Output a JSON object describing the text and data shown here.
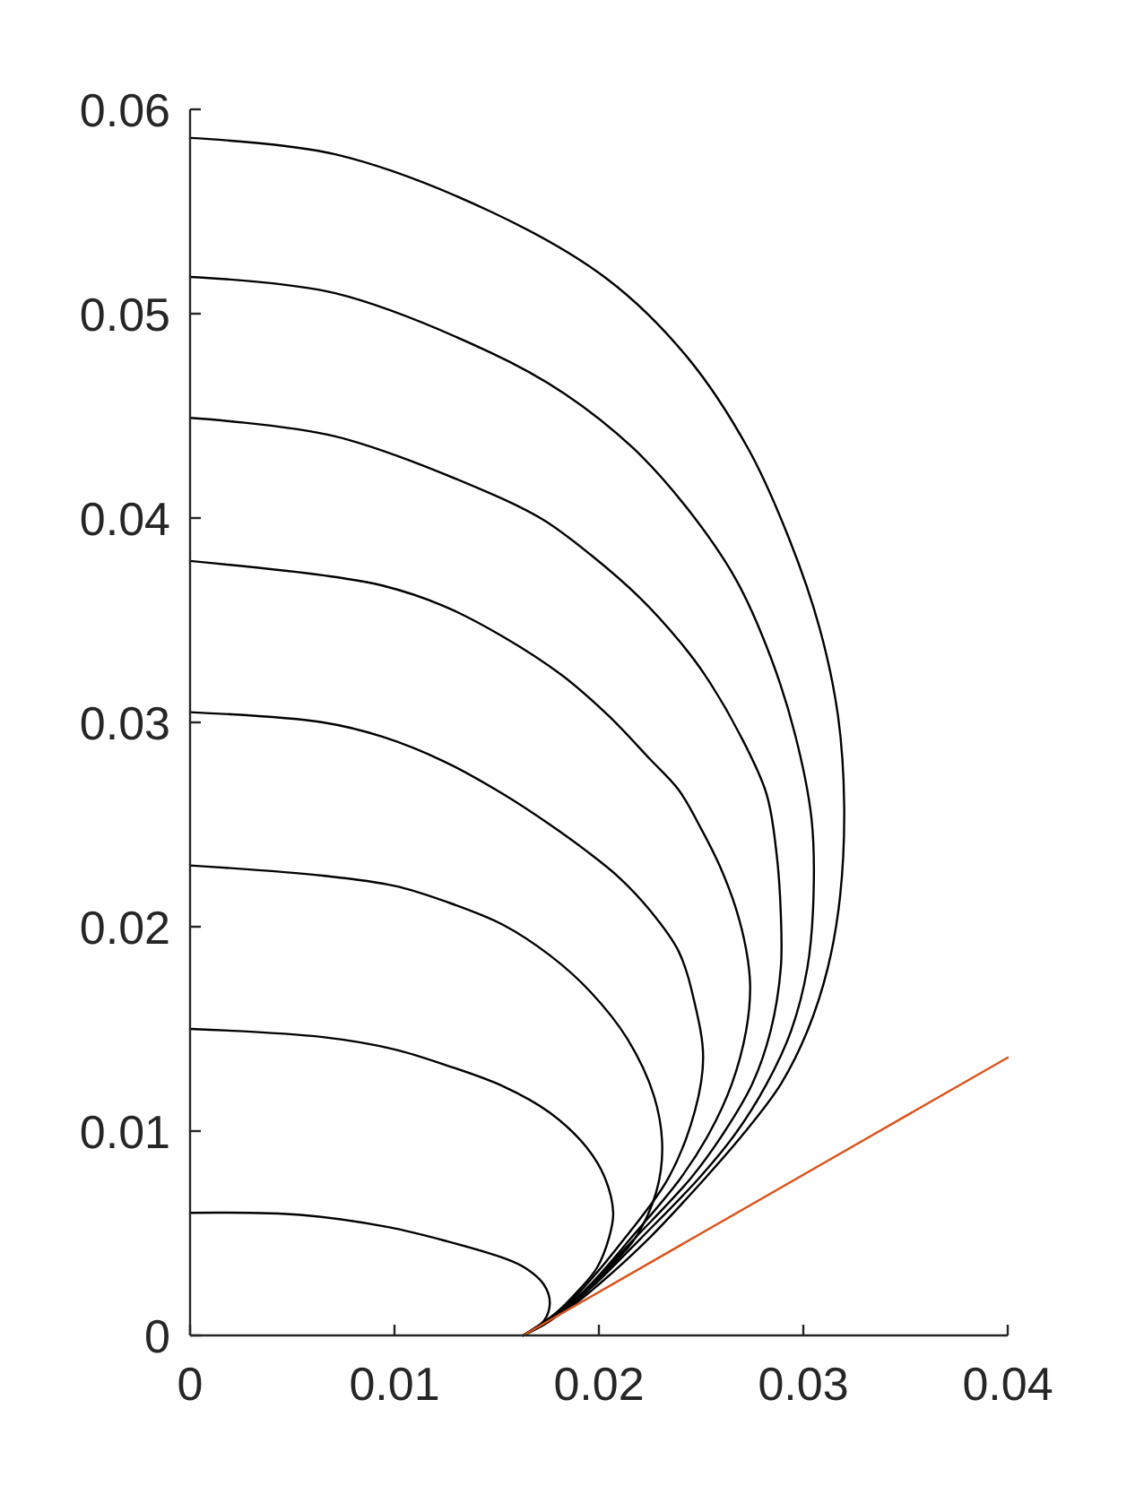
{
  "chart_data": {
    "type": "line",
    "xlim": [
      0,
      0.04
    ],
    "ylim": [
      0,
      0.06
    ],
    "xticks": [
      0,
      0.01,
      0.02,
      0.03,
      0.04
    ],
    "yticks": [
      0,
      0.01,
      0.02,
      0.03,
      0.04,
      0.05,
      0.06
    ],
    "series": [
      {
        "color": "#000000",
        "x": [
          0,
          0.0071,
          0.0147,
          0.0204,
          0.0243,
          0.0273,
          0.0293,
          0.0308,
          0.0317,
          0.032,
          0.0318,
          0.0312,
          0.0302,
          0.0289,
          0.0271,
          0.0252,
          0.0225,
          0.02,
          0.0185,
          0.0163
        ],
        "values": [
          0.0586,
          0.0578,
          0.055,
          0.0517,
          0.0479,
          0.0434,
          0.039,
          0.0346,
          0.0303,
          0.0259,
          0.0215,
          0.018,
          0.0149,
          0.0123,
          0.0099,
          0.0077,
          0.0048,
          0.0025,
          0.0013,
          0
        ]
      },
      {
        "color": "#000000",
        "x": [
          0,
          0.0071,
          0.0147,
          0.0183,
          0.0217,
          0.0243,
          0.0267,
          0.0284,
          0.0296,
          0.0304,
          0.0305,
          0.0302,
          0.0294,
          0.0282,
          0.0267,
          0.0249,
          0.0221,
          0.0198,
          0.0184,
          0.0163
        ],
        "values": [
          0.0518,
          0.051,
          0.0481,
          0.0461,
          0.0434,
          0.0405,
          0.037,
          0.0332,
          0.0294,
          0.0253,
          0.0215,
          0.018,
          0.0149,
          0.0123,
          0.0099,
          0.0077,
          0.0048,
          0.0025,
          0.0013,
          0
        ]
      },
      {
        "color": "#000000",
        "x": [
          0,
          0.0071,
          0.0147,
          0.0173,
          0.0196,
          0.022,
          0.024,
          0.0252,
          0.0269,
          0.0282,
          0.0287,
          0.0289,
          0.0289,
          0.0284,
          0.0275,
          0.0261,
          0.0245,
          0.0218,
          0.0196,
          0.0183,
          0.0163
        ],
        "values": [
          0.0449,
          0.044,
          0.0412,
          0.0399,
          0.0382,
          0.0361,
          0.0339,
          0.0323,
          0.0294,
          0.0265,
          0.0235,
          0.0206,
          0.018,
          0.0149,
          0.0123,
          0.0099,
          0.0077,
          0.0048,
          0.0025,
          0.0013,
          0
        ]
      },
      {
        "color": "#000000",
        "x": [
          0,
          0.0065,
          0.0094,
          0.0124,
          0.0153,
          0.0182,
          0.0205,
          0.0225,
          0.0239,
          0.025,
          0.0259,
          0.0267,
          0.0272,
          0.0274,
          0.0272,
          0.0265,
          0.0254,
          0.024,
          0.0216,
          0.0196,
          0.0183,
          0.0163
        ],
        "values": [
          0.0379,
          0.0372,
          0.0367,
          0.0357,
          0.0342,
          0.0323,
          0.0303,
          0.0282,
          0.0267,
          0.0248,
          0.023,
          0.0209,
          0.0189,
          0.0171,
          0.0149,
          0.0123,
          0.0099,
          0.0077,
          0.0048,
          0.0025,
          0.0013,
          0
        ]
      },
      {
        "color": "#000000",
        "x": [
          0,
          0.0065,
          0.0094,
          0.0124,
          0.0153,
          0.0176,
          0.0194,
          0.021,
          0.0225,
          0.0239,
          0.0247,
          0.0251,
          0.0247,
          0.0234,
          0.0213,
          0.0194,
          0.0182,
          0.0163
        ],
        "values": [
          0.0305,
          0.03,
          0.0293,
          0.0281,
          0.0265,
          0.025,
          0.0237,
          0.0224,
          0.0208,
          0.0188,
          0.0162,
          0.0136,
          0.011,
          0.0077,
          0.0048,
          0.0025,
          0.0013,
          0
        ]
      },
      {
        "color": "#000000",
        "x": [
          0,
          0.0065,
          0.01,
          0.0126,
          0.0153,
          0.0176,
          0.0196,
          0.0214,
          0.0227,
          0.0231,
          0.0228,
          0.0218,
          0.0205,
          0.019,
          0.0176,
          0.0163
        ],
        "values": [
          0.023,
          0.0225,
          0.022,
          0.0212,
          0.0201,
          0.0186,
          0.0168,
          0.0145,
          0.0117,
          0.0092,
          0.007,
          0.0048,
          0.0033,
          0.0019,
          0.0007,
          0
        ]
      },
      {
        "color": "#000000",
        "x": [
          0,
          0.0065,
          0.01,
          0.0126,
          0.0153,
          0.0176,
          0.0194,
          0.0203,
          0.0207,
          0.0205,
          0.0199,
          0.019,
          0.0179,
          0.0163
        ],
        "values": [
          0.015,
          0.0146,
          0.014,
          0.0132,
          0.0122,
          0.0109,
          0.0092,
          0.0077,
          0.006,
          0.0048,
          0.0033,
          0.0022,
          0.0011,
          0
        ]
      },
      {
        "color": "#000000",
        "x": [
          0,
          0.0054,
          0.0097,
          0.0126,
          0.0153,
          0.0164,
          0.0173,
          0.0176,
          0.0173,
          0.0163
        ],
        "values": [
          0.006,
          0.0059,
          0.0053,
          0.0046,
          0.0038,
          0.0033,
          0.0025,
          0.0016,
          0.0007,
          0
        ]
      },
      {
        "color": "#d95319",
        "x": [
          0.0163,
          0.04
        ],
        "values": [
          0,
          0.0136
        ]
      }
    ]
  }
}
